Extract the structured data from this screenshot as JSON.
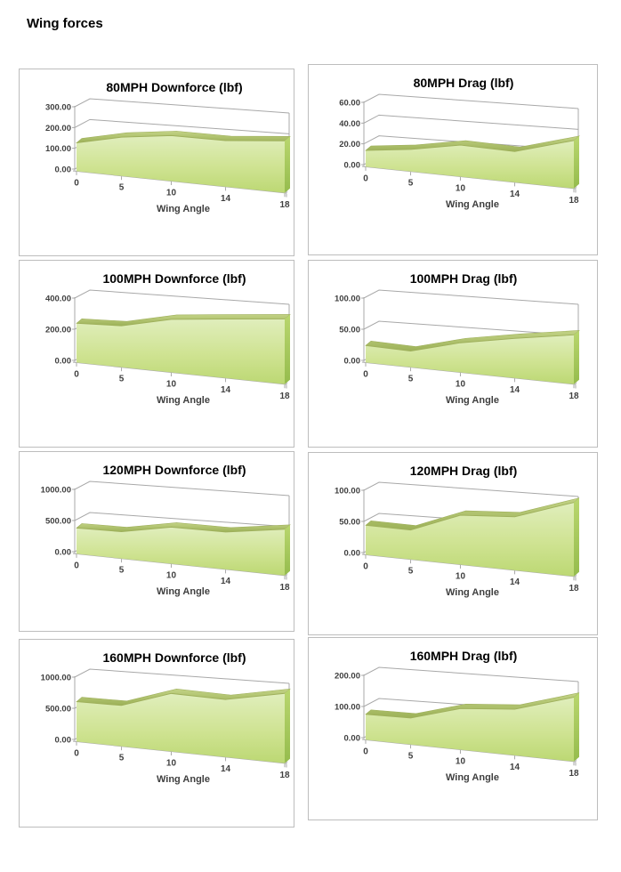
{
  "page": {
    "title": "Wing forces"
  },
  "colors": {
    "panel_border": "#bdbdbd",
    "grid": "#a8a8a8",
    "axis_label": "#3f3f3f",
    "title_text": "#000000",
    "area_face_top": "#e0eebc",
    "area_face_mid": "#cfe392",
    "area_face_bottom": "#bcd873",
    "ribbon_top": "#c3d386",
    "ribbon_bottom": "#9cb157",
    "side_top": "#b9d66e",
    "side_bottom": "#95bc4d",
    "edge_stroke": "#9fb05c"
  },
  "chart_data": [
    {
      "type": "area",
      "title": "80MPH Downforce (lbf)",
      "xlabel": "Wing Angle",
      "categories": [
        0,
        5,
        10,
        14,
        18
      ],
      "values": [
        130,
        158,
        166,
        150,
        152
      ],
      "ylim": [
        0,
        300
      ],
      "ytick_labels": [
        "0.00",
        "100.00",
        "200.00",
        "300.00"
      ]
    },
    {
      "type": "area",
      "title": "80MPH Drag (lbf)",
      "xlabel": "Wing Angle",
      "categories": [
        0,
        5,
        10,
        14,
        18
      ],
      "values": [
        15,
        18,
        23,
        20,
        28
      ],
      "ylim": [
        0,
        60
      ],
      "ytick_labels": [
        "0.00",
        "20.00",
        "40.00",
        "60.00"
      ]
    },
    {
      "type": "area",
      "title": "100MPH Downforce (lbf)",
      "xlabel": "Wing Angle",
      "categories": [
        0,
        5,
        10,
        14,
        18
      ],
      "values": [
        240,
        225,
        258,
        256,
        254
      ],
      "ylim": [
        0,
        400
      ],
      "ytick_labels": [
        "0.00",
        "200.00",
        "400.00"
      ]
    },
    {
      "type": "area",
      "title": "100MPH Drag (lbf)",
      "xlabel": "Wing Angle",
      "categories": [
        0,
        5,
        10,
        14,
        18
      ],
      "values": [
        26,
        22,
        36,
        43,
        48
      ],
      "ylim": [
        0,
        100
      ],
      "ytick_labels": [
        "0.00",
        "50.00",
        "100.00"
      ]
    },
    {
      "type": "area",
      "title": "120MPH Downforce (lbf)",
      "xlabel": "Wing Angle",
      "categories": [
        0,
        5,
        10,
        14,
        18
      ],
      "values": [
        395,
        365,
        445,
        405,
        450
      ],
      "ylim": [
        0,
        1000
      ],
      "ytick_labels": [
        "0.00",
        "500.00",
        "1000.00"
      ]
    },
    {
      "type": "area",
      "title": "120MPH Drag (lbf)",
      "xlabel": "Wing Angle",
      "categories": [
        0,
        5,
        10,
        14,
        18
      ],
      "values": [
        45,
        40,
        60,
        58,
        72
      ],
      "ylim": [
        0,
        100
      ],
      "ytick_labels": [
        "0.00",
        "50.00",
        "100.00"
      ]
    },
    {
      "type": "area",
      "title": "160MPH Downforce (lbf)",
      "xlabel": "Wing Angle",
      "categories": [
        0,
        5,
        10,
        14,
        18
      ],
      "values": [
        610,
        555,
        705,
        625,
        680
      ],
      "ylim": [
        0,
        1000
      ],
      "ytick_labels": [
        "0.00",
        "500.00",
        "1000.00"
      ]
    },
    {
      "type": "area",
      "title": "160MPH Drag (lbf)",
      "xlabel": "Wing Angle",
      "categories": [
        0,
        5,
        10,
        14,
        18
      ],
      "values": [
        78,
        72,
        100,
        100,
        125
      ],
      "ylim": [
        0,
        200
      ],
      "ytick_labels": [
        "0.00",
        "100.00",
        "200.00"
      ]
    }
  ]
}
